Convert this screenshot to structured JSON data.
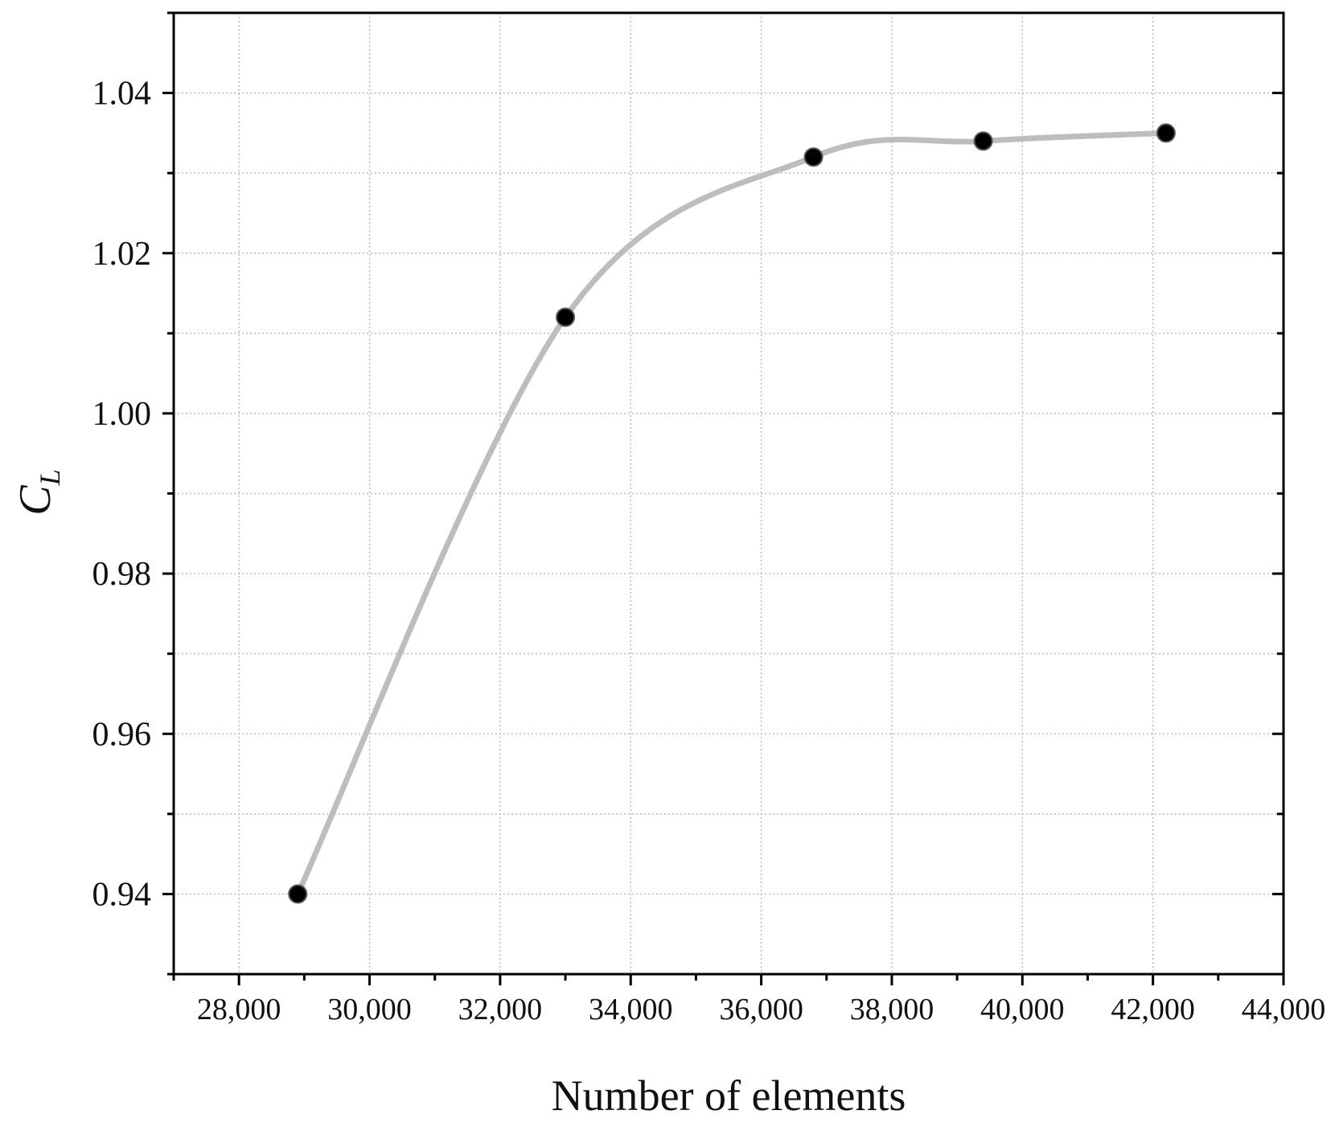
{
  "chart_data": {
    "type": "line",
    "xlabel": "Number of elements",
    "ylabel": {
      "text": "C",
      "subscript": "L"
    },
    "x": [
      28900,
      33000,
      36800,
      39400,
      42200
    ],
    "series": [
      {
        "color": "#bdbdbd",
        "marker_color": "#000000",
        "values": [
          0.94,
          1.012,
          1.032,
          1.034,
          1.035
        ]
      }
    ],
    "xlim": [
      27000,
      44000
    ],
    "ylim": [
      0.93,
      1.05
    ],
    "xticks": [
      {
        "value": 28000,
        "label": "28,000"
      },
      {
        "value": 30000,
        "label": "30,000"
      },
      {
        "value": 32000,
        "label": "32,000"
      },
      {
        "value": 34000,
        "label": "34,000"
      },
      {
        "value": 36000,
        "label": "36,000"
      },
      {
        "value": 38000,
        "label": "38,000"
      },
      {
        "value": 40000,
        "label": "40,000"
      },
      {
        "value": 42000,
        "label": "42,000"
      },
      {
        "value": 44000,
        "label": "44,000"
      }
    ],
    "xminorticks": [
      27000,
      29000,
      31000,
      33000,
      35000,
      37000,
      39000,
      41000,
      43000
    ],
    "yticks": [
      0.94,
      0.96,
      0.98,
      {
        "value": 1,
        "label": "1.00"
      },
      1.02,
      1.04
    ],
    "yminorticks": [
      0.93,
      0.95,
      0.97,
      0.99,
      1.01,
      1.03,
      1.05
    ],
    "grid": true
  }
}
